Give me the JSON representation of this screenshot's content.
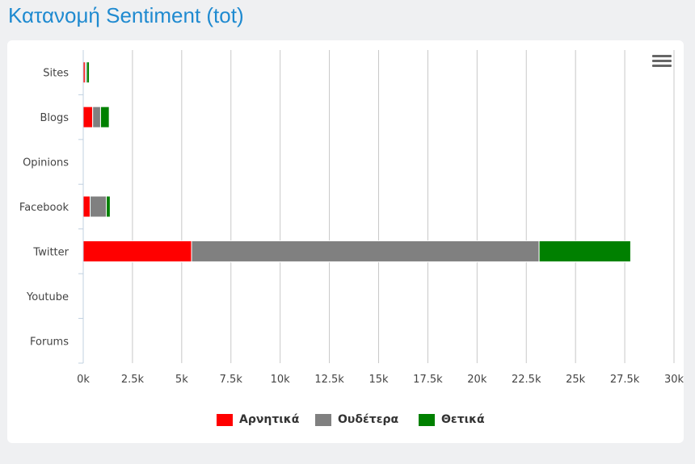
{
  "page": {
    "title": "Κατανομή Sentiment (tot)"
  },
  "menu": {
    "icon": "hamburger-menu-icon"
  },
  "chart_data": {
    "type": "bar",
    "orientation": "horizontal",
    "stacked": true,
    "categories": [
      "Sites",
      "Blogs",
      "Opinions",
      "Facebook",
      "Twitter",
      "Youtube",
      "Forums"
    ],
    "series": [
      {
        "name": "Αρνητικά",
        "color": "#ff0000",
        "values": [
          100,
          480,
          0,
          350,
          5500,
          0,
          0
        ]
      },
      {
        "name": "Ουδέτερα",
        "color": "#808080",
        "values": [
          70,
          400,
          0,
          820,
          17650,
          0,
          0
        ]
      },
      {
        "name": "Θετικά",
        "color": "#008000",
        "values": [
          140,
          440,
          0,
          200,
          4650,
          0,
          0
        ]
      }
    ],
    "xlim": [
      0,
      30000
    ],
    "xticks": [
      0,
      2500,
      5000,
      7500,
      10000,
      12500,
      15000,
      17500,
      20000,
      22500,
      25000,
      27500,
      30000
    ],
    "xtick_labels": [
      "0k",
      "2.5k",
      "5k",
      "7.5k",
      "10k",
      "12.5k",
      "15k",
      "17.5k",
      "20k",
      "22.5k",
      "25k",
      "27.5k",
      "30k"
    ],
    "grid": true,
    "legend_position": "bottom-center"
  }
}
